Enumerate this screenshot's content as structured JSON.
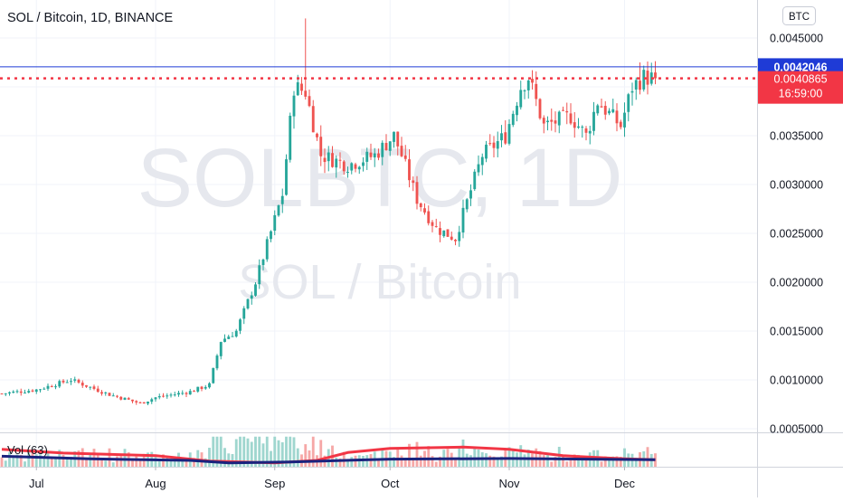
{
  "header": {
    "symbol_title": "SOL / Bitcoin, 1D, BINANCE",
    "watermark_ticker": "SOLBTC, 1D",
    "watermark_name": "SOL / Bitcoin",
    "currency_badge": "BTC"
  },
  "volume": {
    "label": "Vol (63)"
  },
  "price_labels": {
    "blue_line_value": "0.0042046",
    "last_price_value": "0.0040865",
    "countdown": "16:59:00"
  },
  "colors": {
    "up": "#26a69a",
    "down": "#ef5350",
    "up_volume": "#9fd6cf",
    "down_volume": "#f6a8a7",
    "blue_line": "#1f3bd6",
    "blue_label_bg": "#1f3bd6",
    "last_price": "#f23645",
    "ma_red": "#f23645",
    "ma_navy": "#1a237e",
    "grid": "#f0f3fa",
    "axis_text": "#131722"
  },
  "chart_data": {
    "type": "candlestick",
    "title": "SOL / Bitcoin, 1D, BINANCE",
    "ylabel": "BTC",
    "ylim": [
      0.00045,
      0.00485
    ],
    "yticks": [
      0.0005,
      0.001,
      0.0015,
      0.002,
      0.0025,
      0.003,
      0.0035,
      0.004,
      0.0045
    ],
    "ytick_labels": [
      "0.0005000",
      "0.0010000",
      "0.0015000",
      "0.0020000",
      "0.0025000",
      "0.0030000",
      "0.0035000",
      "0.0040000",
      "0.0045000"
    ],
    "x_start": "2021-06-22",
    "x_end": "2021-12-09",
    "xticks": [
      {
        "label": "Jul",
        "date": "2021-07-01"
      },
      {
        "label": "Aug",
        "date": "2021-08-01"
      },
      {
        "label": "Sep",
        "date": "2021-09-01"
      },
      {
        "label": "Oct",
        "date": "2021-10-01"
      },
      {
        "label": "Nov",
        "date": "2021-11-01"
      },
      {
        "label": "Dec",
        "date": "2021-12-01"
      }
    ],
    "horizontal_lines": [
      {
        "name": "resistance",
        "value": 0.0042046,
        "style": "solid",
        "color": "#1f3bd6"
      },
      {
        "name": "last-price",
        "value": 0.0040865,
        "style": "dotted",
        "color": "#f23645"
      }
    ],
    "close_keypoints": [
      {
        "date": "2021-06-22",
        "close": 0.00086
      },
      {
        "date": "2021-07-01",
        "close": 0.0009
      },
      {
        "date": "2021-07-10",
        "close": 0.001
      },
      {
        "date": "2021-07-20",
        "close": 0.00085
      },
      {
        "date": "2021-07-28",
        "close": 0.00076
      },
      {
        "date": "2021-08-01",
        "close": 0.00082
      },
      {
        "date": "2021-08-10",
        "close": 0.00088
      },
      {
        "date": "2021-08-15",
        "close": 0.00095
      },
      {
        "date": "2021-08-18",
        "close": 0.0014
      },
      {
        "date": "2021-08-22",
        "close": 0.0015
      },
      {
        "date": "2021-08-27",
        "close": 0.002
      },
      {
        "date": "2021-09-03",
        "close": 0.0029
      },
      {
        "date": "2021-09-06",
        "close": 0.004
      },
      {
        "date": "2021-09-09",
        "close": 0.00395
      },
      {
        "date": "2021-09-13",
        "close": 0.0033
      },
      {
        "date": "2021-09-20",
        "close": 0.0032
      },
      {
        "date": "2021-09-27",
        "close": 0.0033
      },
      {
        "date": "2021-10-02",
        "close": 0.0035
      },
      {
        "date": "2021-10-04",
        "close": 0.0033
      },
      {
        "date": "2021-10-08",
        "close": 0.00285
      },
      {
        "date": "2021-10-13",
        "close": 0.00255
      },
      {
        "date": "2021-10-18",
        "close": 0.00245
      },
      {
        "date": "2021-10-20",
        "close": 0.0027
      },
      {
        "date": "2021-10-25",
        "close": 0.0033
      },
      {
        "date": "2021-10-31",
        "close": 0.0035
      },
      {
        "date": "2021-11-04",
        "close": 0.004
      },
      {
        "date": "2021-11-06",
        "close": 0.0041
      },
      {
        "date": "2021-11-10",
        "close": 0.0036
      },
      {
        "date": "2021-11-17",
        "close": 0.0037
      },
      {
        "date": "2021-11-21",
        "close": 0.0035
      },
      {
        "date": "2021-11-24",
        "close": 0.00385
      },
      {
        "date": "2021-11-30",
        "close": 0.0036
      },
      {
        "date": "2021-12-03",
        "close": 0.004
      },
      {
        "date": "2021-12-06",
        "close": 0.0041
      },
      {
        "date": "2021-12-09",
        "close": 0.004087
      }
    ],
    "volume_ma_red": [
      {
        "date": "2021-06-22",
        "v": 0.55
      },
      {
        "date": "2021-07-08",
        "v": 0.43
      },
      {
        "date": "2021-08-01",
        "v": 0.35
      },
      {
        "date": "2021-08-15",
        "v": 0.18
      },
      {
        "date": "2021-09-01",
        "v": 0.12
      },
      {
        "date": "2021-09-12",
        "v": 0.2
      },
      {
        "date": "2021-09-20",
        "v": 0.45
      },
      {
        "date": "2021-10-01",
        "v": 0.58
      },
      {
        "date": "2021-10-20",
        "v": 0.62
      },
      {
        "date": "2021-11-01",
        "v": 0.55
      },
      {
        "date": "2021-11-15",
        "v": 0.35
      },
      {
        "date": "2021-12-01",
        "v": 0.25
      },
      {
        "date": "2021-12-09",
        "v": 0.22
      }
    ],
    "volume_ma_navy": [
      {
        "date": "2021-06-22",
        "v": 0.33
      },
      {
        "date": "2021-07-15",
        "v": 0.25
      },
      {
        "date": "2021-08-10",
        "v": 0.2
      },
      {
        "date": "2021-08-20",
        "v": 0.12
      },
      {
        "date": "2021-09-05",
        "v": 0.15
      },
      {
        "date": "2021-10-01",
        "v": 0.24
      },
      {
        "date": "2021-11-01",
        "v": 0.26
      },
      {
        "date": "2021-12-09",
        "v": 0.22
      }
    ]
  }
}
